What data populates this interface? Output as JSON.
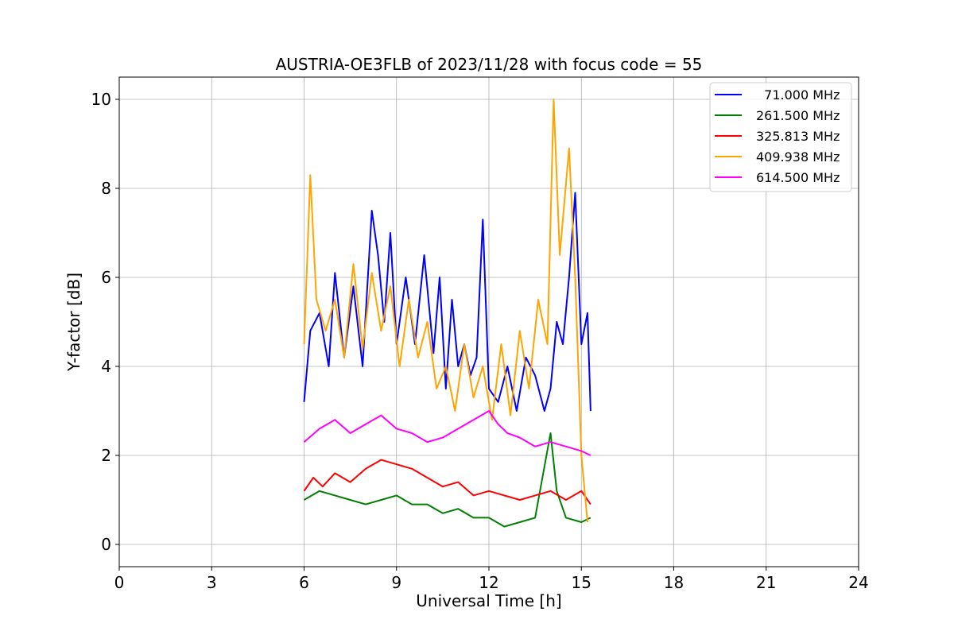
{
  "chart_data": {
    "type": "line",
    "title": "AUSTRIA-OE3FLB of 2023/11/28 with focus code = 55",
    "xlabel": "Universal Time [h]",
    "ylabel": "Y-factor [dB]",
    "xlim": [
      0,
      24
    ],
    "ylim": [
      -0.5,
      10.5
    ],
    "xticks": [
      0,
      3,
      6,
      9,
      12,
      15,
      18,
      21,
      24
    ],
    "xtick_labels": [
      "0",
      "3",
      "6",
      "9",
      "12",
      "15",
      "18",
      "21",
      "24"
    ],
    "yticks": [
      0,
      2,
      4,
      6,
      8,
      10
    ],
    "ytick_labels": [
      "0",
      "2",
      "4",
      "6",
      "8",
      "10"
    ],
    "grid": true,
    "legend_position": "top-right",
    "series": [
      {
        "name": "  71.000 MHz",
        "color": "#0000ff",
        "points": [
          [
            6.0,
            3.2
          ],
          [
            6.2,
            4.8
          ],
          [
            6.5,
            5.2
          ],
          [
            6.8,
            4.0
          ],
          [
            7.0,
            6.1
          ],
          [
            7.3,
            4.2
          ],
          [
            7.6,
            5.8
          ],
          [
            7.9,
            4.0
          ],
          [
            8.2,
            7.5
          ],
          [
            8.4,
            6.5
          ],
          [
            8.6,
            5.0
          ],
          [
            8.8,
            7.0
          ],
          [
            9.0,
            4.5
          ],
          [
            9.3,
            6.0
          ],
          [
            9.6,
            4.5
          ],
          [
            9.9,
            6.5
          ],
          [
            10.2,
            4.3
          ],
          [
            10.4,
            6.0
          ],
          [
            10.6,
            3.5
          ],
          [
            10.8,
            5.5
          ],
          [
            11.0,
            4.0
          ],
          [
            11.2,
            4.5
          ],
          [
            11.4,
            3.8
          ],
          [
            11.6,
            4.2
          ],
          [
            11.8,
            7.3
          ],
          [
            12.0,
            3.5
          ],
          [
            12.3,
            3.2
          ],
          [
            12.6,
            4.0
          ],
          [
            12.9,
            3.0
          ],
          [
            13.2,
            4.2
          ],
          [
            13.5,
            3.8
          ],
          [
            13.8,
            3.0
          ],
          [
            14.0,
            3.5
          ],
          [
            14.2,
            5.0
          ],
          [
            14.4,
            4.5
          ],
          [
            14.6,
            6.0
          ],
          [
            14.8,
            7.9
          ],
          [
            15.0,
            4.5
          ],
          [
            15.2,
            5.2
          ],
          [
            15.3,
            3.0
          ]
        ]
      },
      {
        "name": "261.500 MHz",
        "color": "#008000",
        "points": [
          [
            6.0,
            1.0
          ],
          [
            6.5,
            1.2
          ],
          [
            7.0,
            1.1
          ],
          [
            7.5,
            1.0
          ],
          [
            8.0,
            0.9
          ],
          [
            8.5,
            1.0
          ],
          [
            9.0,
            1.1
          ],
          [
            9.5,
            0.9
          ],
          [
            10.0,
            0.9
          ],
          [
            10.5,
            0.7
          ],
          [
            11.0,
            0.8
          ],
          [
            11.5,
            0.6
          ],
          [
            12.0,
            0.6
          ],
          [
            12.5,
            0.4
          ],
          [
            13.0,
            0.5
          ],
          [
            13.5,
            0.6
          ],
          [
            14.0,
            2.5
          ],
          [
            14.2,
            1.2
          ],
          [
            14.5,
            0.6
          ],
          [
            15.0,
            0.5
          ],
          [
            15.3,
            0.6
          ]
        ]
      },
      {
        "name": "325.813 MHz",
        "color": "#ff0000",
        "points": [
          [
            6.0,
            1.2
          ],
          [
            6.3,
            1.5
          ],
          [
            6.6,
            1.3
          ],
          [
            7.0,
            1.6
          ],
          [
            7.5,
            1.4
          ],
          [
            8.0,
            1.7
          ],
          [
            8.5,
            1.9
          ],
          [
            9.0,
            1.8
          ],
          [
            9.5,
            1.7
          ],
          [
            10.0,
            1.5
          ],
          [
            10.5,
            1.3
          ],
          [
            11.0,
            1.4
          ],
          [
            11.5,
            1.1
          ],
          [
            12.0,
            1.2
          ],
          [
            12.5,
            1.1
          ],
          [
            13.0,
            1.0
          ],
          [
            13.5,
            1.1
          ],
          [
            14.0,
            1.2
          ],
          [
            14.5,
            1.0
          ],
          [
            15.0,
            1.2
          ],
          [
            15.3,
            0.9
          ]
        ]
      },
      {
        "name": "409.938 MHz",
        "color": "#ffa500",
        "points": [
          [
            6.0,
            4.5
          ],
          [
            6.2,
            8.3
          ],
          [
            6.4,
            5.5
          ],
          [
            6.7,
            4.8
          ],
          [
            7.0,
            5.5
          ],
          [
            7.3,
            4.2
          ],
          [
            7.6,
            6.3
          ],
          [
            7.9,
            4.4
          ],
          [
            8.2,
            6.1
          ],
          [
            8.5,
            4.8
          ],
          [
            8.8,
            5.8
          ],
          [
            9.1,
            4.0
          ],
          [
            9.4,
            5.5
          ],
          [
            9.7,
            4.2
          ],
          [
            10.0,
            5.0
          ],
          [
            10.3,
            3.5
          ],
          [
            10.6,
            4.0
          ],
          [
            10.9,
            3.0
          ],
          [
            11.2,
            4.5
          ],
          [
            11.5,
            3.3
          ],
          [
            11.8,
            4.0
          ],
          [
            12.1,
            2.8
          ],
          [
            12.4,
            4.5
          ],
          [
            12.7,
            2.9
          ],
          [
            13.0,
            4.8
          ],
          [
            13.3,
            3.5
          ],
          [
            13.6,
            5.5
          ],
          [
            13.9,
            4.5
          ],
          [
            14.1,
            10.0
          ],
          [
            14.3,
            6.5
          ],
          [
            14.6,
            8.9
          ],
          [
            14.8,
            6.0
          ],
          [
            15.0,
            2.0
          ],
          [
            15.2,
            0.5
          ]
        ]
      },
      {
        "name": "614.500 MHz",
        "color": "#ff00ff",
        "points": [
          [
            6.0,
            2.3
          ],
          [
            6.5,
            2.6
          ],
          [
            7.0,
            2.8
          ],
          [
            7.5,
            2.5
          ],
          [
            8.0,
            2.7
          ],
          [
            8.5,
            2.9
          ],
          [
            9.0,
            2.6
          ],
          [
            9.5,
            2.5
          ],
          [
            10.0,
            2.3
          ],
          [
            10.5,
            2.4
          ],
          [
            11.0,
            2.6
          ],
          [
            11.5,
            2.8
          ],
          [
            12.0,
            3.0
          ],
          [
            12.3,
            2.7
          ],
          [
            12.6,
            2.5
          ],
          [
            13.0,
            2.4
          ],
          [
            13.5,
            2.2
          ],
          [
            14.0,
            2.3
          ],
          [
            14.5,
            2.2
          ],
          [
            15.0,
            2.1
          ],
          [
            15.3,
            2.0
          ]
        ]
      }
    ]
  }
}
